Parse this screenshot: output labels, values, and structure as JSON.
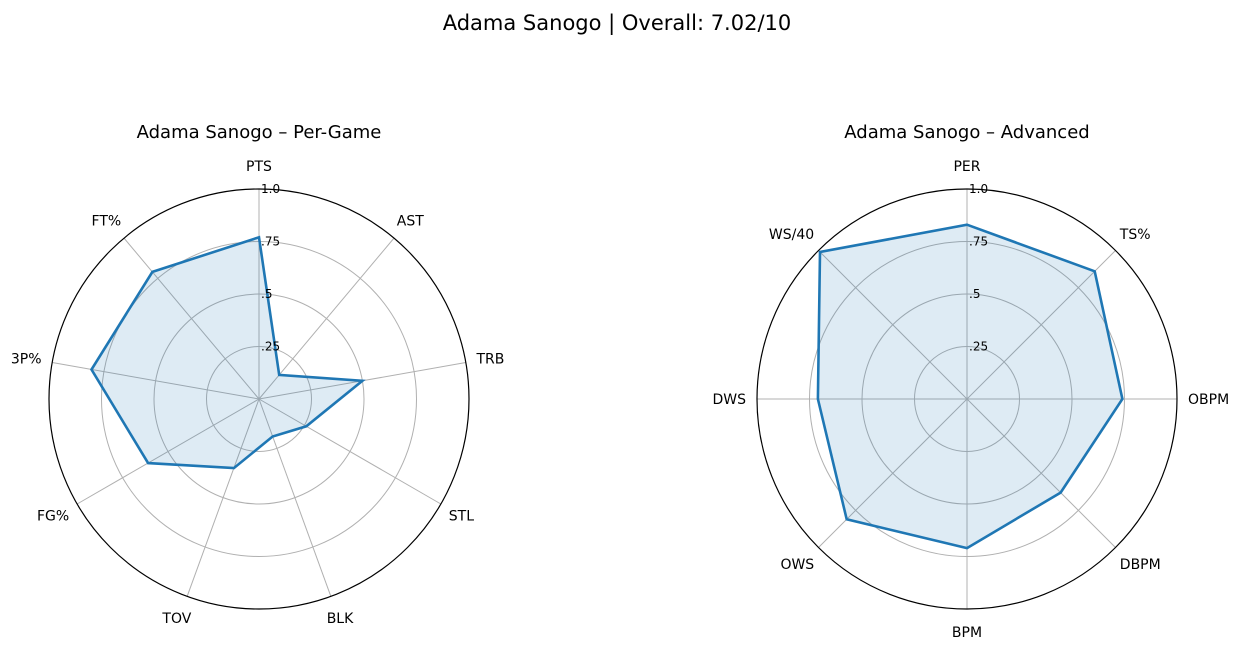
{
  "suptitle": "Adama Sanogo | Overall: 7.02/10",
  "colors": {
    "line": "#1f77b4",
    "fill": "#1f77b4",
    "grid": "#b0b0b0",
    "frame": "#000000"
  },
  "chart_data": [
    {
      "type": "radar",
      "title": "Adama Sanogo – Per-Game",
      "categories": [
        "PTS",
        "AST",
        "TRB",
        "STL",
        "BLK",
        "TOV",
        "FG%",
        "3P%",
        "FT%"
      ],
      "values": [
        0.77,
        0.15,
        0.5,
        0.26,
        0.19,
        0.35,
        0.61,
        0.81,
        0.79
      ],
      "r_ticks": [
        ".25",
        ".5",
        ".75",
        "1.0"
      ],
      "rlim": [
        0,
        1
      ],
      "grid": true
    },
    {
      "type": "radar",
      "title": "Adama Sanogo – Advanced",
      "categories": [
        "PER",
        "TS%",
        "OBPM",
        "DBPM",
        "BPM",
        "OWS",
        "DWS",
        "WS/40"
      ],
      "values": [
        0.83,
        0.86,
        0.74,
        0.63,
        0.71,
        0.81,
        0.71,
        0.99
      ],
      "r_ticks": [
        ".25",
        ".5",
        ".75",
        "1.0"
      ],
      "rlim": [
        0,
        1
      ],
      "grid": true
    }
  ]
}
